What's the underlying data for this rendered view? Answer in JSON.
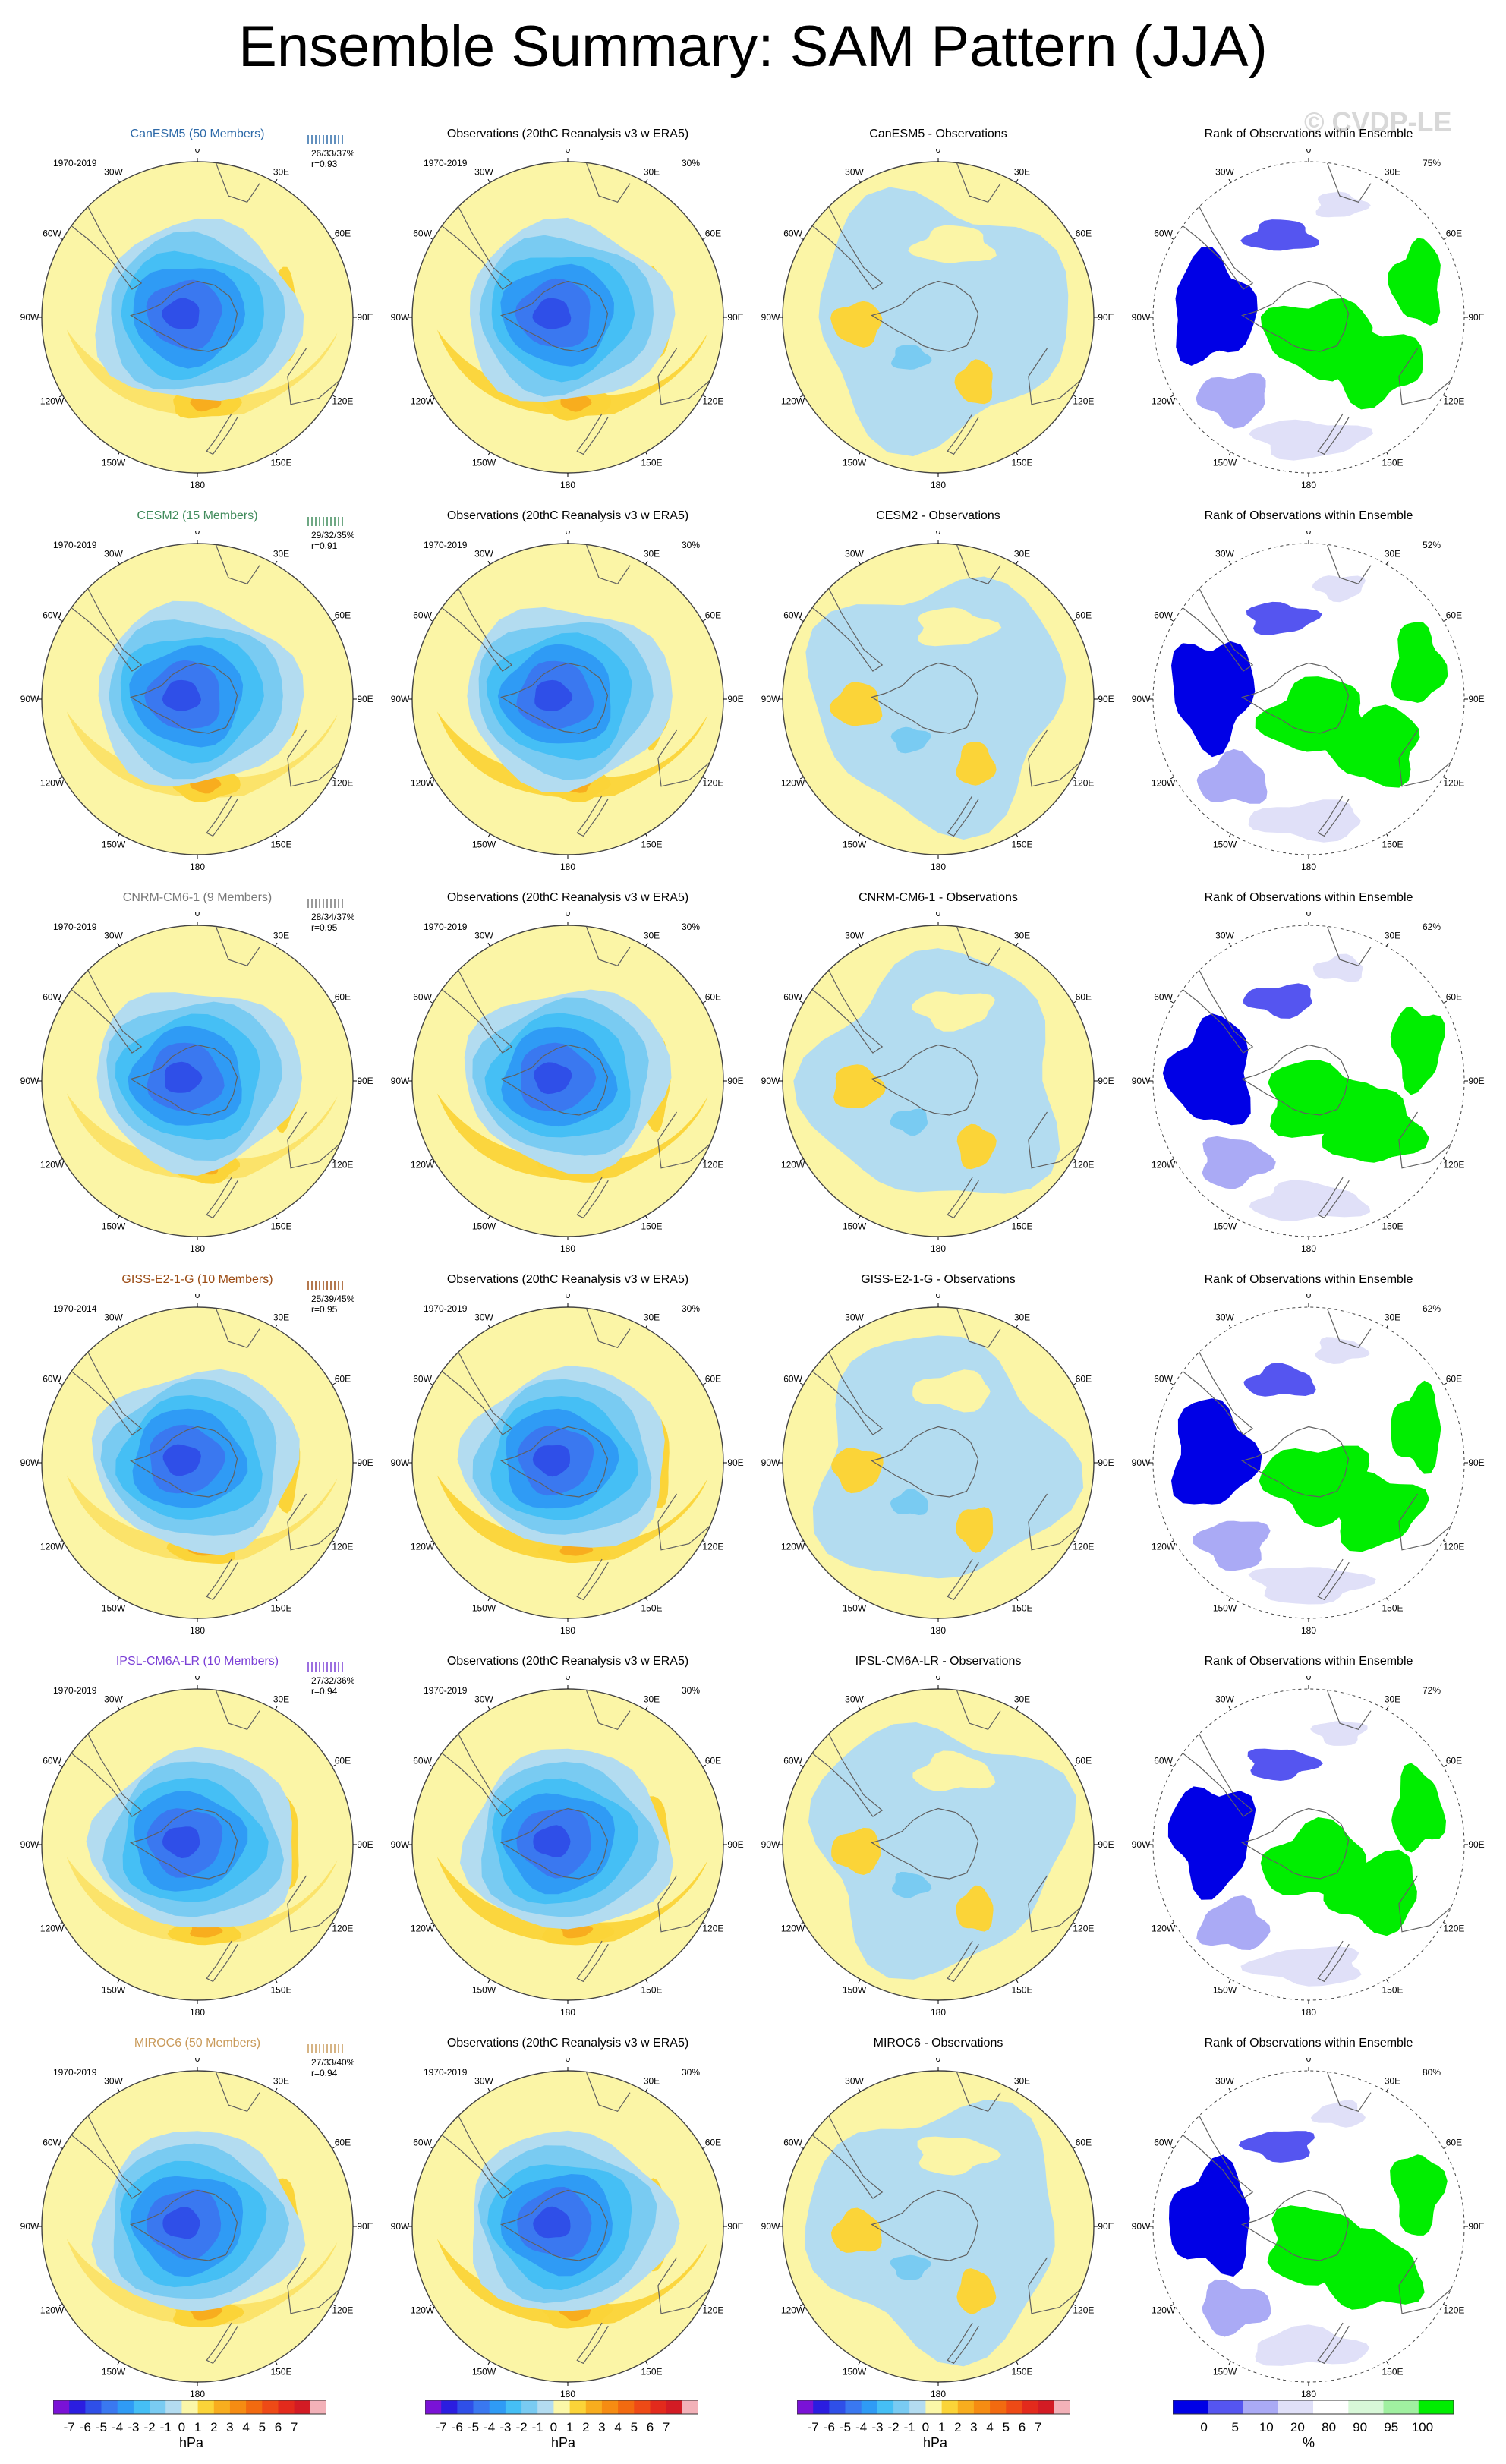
{
  "page": {
    "title": "Ensemble Summary: SAM Pattern (JJA)",
    "watermark": "© CVDP-LE"
  },
  "chart_data": {
    "type": "polar-map-panels",
    "title": "Ensemble Summary: SAM Pattern (JJA)",
    "units_pattern": "hPa",
    "units_rank": "%",
    "pattern_levels": [
      "-7",
      "-6",
      "-5",
      "-4",
      "-3",
      "-2",
      "-1",
      "0",
      "1",
      "2",
      "3",
      "4",
      "5",
      "6",
      "7"
    ],
    "rank_levels": [
      "0",
      "5",
      "10",
      "20",
      "80",
      "90",
      "95",
      "100"
    ],
    "longitude_labels": [
      "0",
      "30E",
      "60E",
      "90E",
      "120E",
      "150E",
      "180",
      "150W",
      "120W",
      "90W",
      "60W",
      "30W"
    ],
    "pattern_colors": [
      "#7a12d6",
      "#2b1de0",
      "#2f4fe8",
      "#3a78f0",
      "#2f9bf5",
      "#45bff5",
      "#79cbf2",
      "#b3dcf0",
      "#fbf7a8",
      "#fbd438",
      "#f8ad1e",
      "#f68c12",
      "#f26a10",
      "#ee4a16",
      "#e32a1c",
      "#d31b24",
      "#f3b1b8"
    ],
    "rank_colors": [
      "#0000e6",
      "#5555f0",
      "#aaaaf5",
      "#e0e0f8",
      "#ffffff",
      "#d8f8d8",
      "#a0f0a0",
      "#00ee00"
    ],
    "rows": [
      {
        "model": "CanESM5 (50 Members)",
        "model_color": "#2e6aa8",
        "period": "1970-2019",
        "obs_period": "1970-2019",
        "stats": "26/33/37%",
        "r": "r=0.93",
        "rank_pct": "75%",
        "obs_pct": "30%",
        "obs_title": "Observations (20thC Reanalysis v3 w ERA5)",
        "diff_title": "CanESM5 - Observations",
        "rank_title": "Rank of Observations within Ensemble"
      },
      {
        "model": "CESM2 (15 Members)",
        "model_color": "#3f8a5a",
        "period": "1970-2019",
        "obs_period": "1970-2019",
        "stats": "29/32/35%",
        "r": "r=0.91",
        "rank_pct": "52%",
        "obs_pct": "30%",
        "obs_title": "Observations (20thC Reanalysis v3 w ERA5)",
        "diff_title": "CESM2 - Observations",
        "rank_title": "Rank of Observations within Ensemble"
      },
      {
        "model": "CNRM-CM6-1 (9 Members)",
        "model_color": "#777777",
        "period": "1970-2019",
        "obs_period": "1970-2019",
        "stats": "28/34/37%",
        "r": "r=0.95",
        "rank_pct": "62%",
        "obs_pct": "30%",
        "obs_title": "Observations (20thC Reanalysis v3 w ERA5)",
        "diff_title": "CNRM-CM6-1 - Observations",
        "rank_title": "Rank of Observations within Ensemble"
      },
      {
        "model": "GISS-E2-1-G (10 Members)",
        "model_color": "#9a4a12",
        "period": "1970-2014",
        "obs_period": "1970-2019",
        "stats": "25/39/45%",
        "r": "r=0.95",
        "rank_pct": "62%",
        "obs_pct": "30%",
        "obs_title": "Observations (20thC Reanalysis v3 w ERA5)",
        "diff_title": "GISS-E2-1-G - Observations",
        "rank_title": "Rank of Observations within Ensemble"
      },
      {
        "model": "IPSL-CM6A-LR (10 Members)",
        "model_color": "#7b3fd6",
        "period": "1970-2019",
        "obs_period": "1970-2019",
        "stats": "27/32/36%",
        "r": "r=0.94",
        "rank_pct": "72%",
        "obs_pct": "30%",
        "obs_title": "Observations (20thC Reanalysis v3 w ERA5)",
        "diff_title": "IPSL-CM6A-LR - Observations",
        "rank_title": "Rank of Observations within Ensemble"
      },
      {
        "model": "MIROC6 (50 Members)",
        "model_color": "#c99a5a",
        "period": "1970-2019",
        "obs_period": "1970-2019",
        "stats": "27/33/40%",
        "r": "r=0.94",
        "rank_pct": "80%",
        "obs_pct": "30%",
        "obs_title": "Observations (20thC Reanalysis v3 w ERA5)",
        "diff_title": "MIROC6 - Observations",
        "rank_title": "Rank of Observations within Ensemble"
      }
    ]
  }
}
